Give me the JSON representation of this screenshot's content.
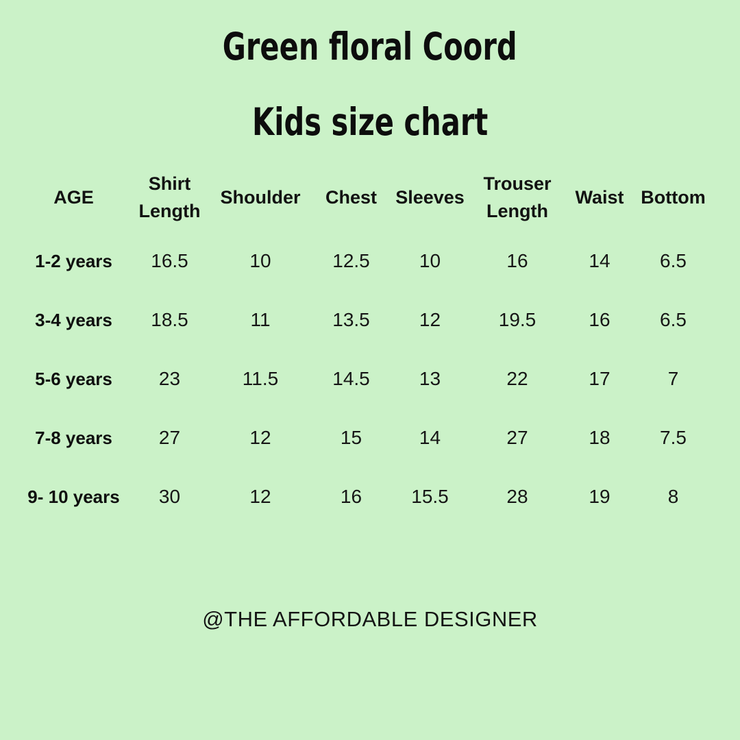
{
  "page": {
    "background_color": "#cbf2c8",
    "text_color": "#121212",
    "title": "Green floral Coord",
    "subtitle": "Kids size chart",
    "credit": "@THE AFFORDABLE DESIGNER"
  },
  "chart_data": {
    "type": "table",
    "title": "Green floral Coord",
    "subtitle": "Kids size chart",
    "columns": [
      "AGE",
      "Shirt Length",
      "Shoulder",
      "Chest",
      "Sleeves",
      "Trouser Length",
      "Waist",
      "Bottom"
    ],
    "rows": [
      [
        "1-2 years",
        "16.5",
        "10",
        "12.5",
        "10",
        "16",
        "14",
        "6.5"
      ],
      [
        "3-4 years",
        "18.5",
        "11",
        "13.5",
        "12",
        "19.5",
        "16",
        "6.5"
      ],
      [
        "5-6 years",
        "23",
        "11.5",
        "14.5",
        "13",
        "22",
        "17",
        "7"
      ],
      [
        "7-8 years",
        "27",
        "12",
        "15",
        "14",
        "27",
        "18",
        "7.5"
      ],
      [
        "9- 10 years",
        "30",
        "12",
        "16",
        "15.5",
        "28",
        "19",
        "8"
      ]
    ],
    "credit": "@THE AFFORDABLE DESIGNER"
  }
}
